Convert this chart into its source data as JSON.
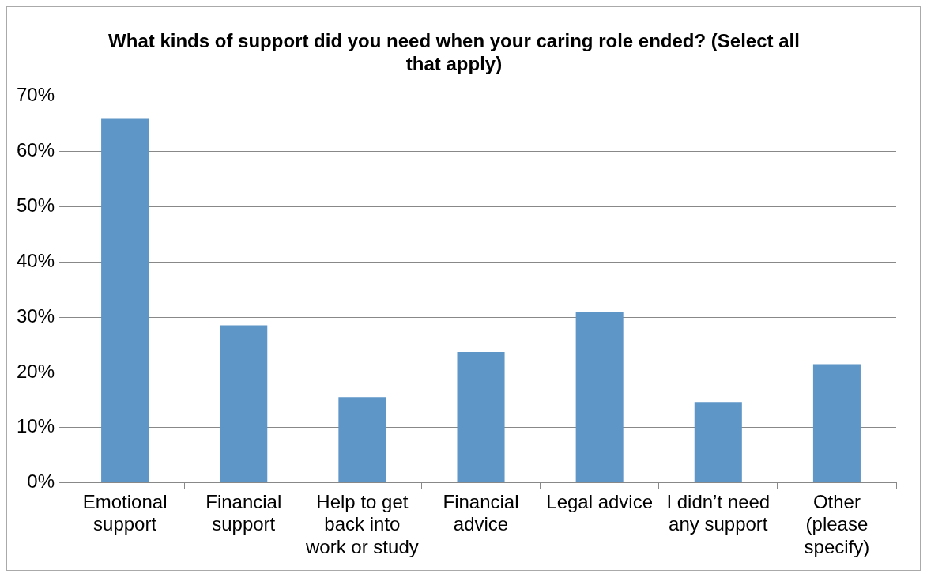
{
  "chart_data": {
    "type": "bar",
    "title": "What kinds of support did you need when your caring role ended? (Select all that apply)",
    "categories": [
      "Emotional support",
      "Financial support",
      "Help to get back into work or study",
      "Financial advice",
      "Legal advice",
      "I didn’t need any support",
      "Other (please specify)"
    ],
    "values": [
      66,
      28.5,
      15.5,
      23.7,
      31,
      14.5,
      21.5
    ],
    "color": "#5f96c8",
    "ylim": [
      0,
      70
    ],
    "yticks": [
      {
        "value": 0,
        "label": "0%"
      },
      {
        "value": 10,
        "label": "10%"
      },
      {
        "value": 20,
        "label": "20%"
      },
      {
        "value": 30,
        "label": "30%"
      },
      {
        "value": 40,
        "label": "40%"
      },
      {
        "value": 50,
        "label": "50%"
      },
      {
        "value": 60,
        "label": "60%"
      },
      {
        "value": 70,
        "label": "70%"
      }
    ],
    "grid": "y",
    "legend": false
  }
}
